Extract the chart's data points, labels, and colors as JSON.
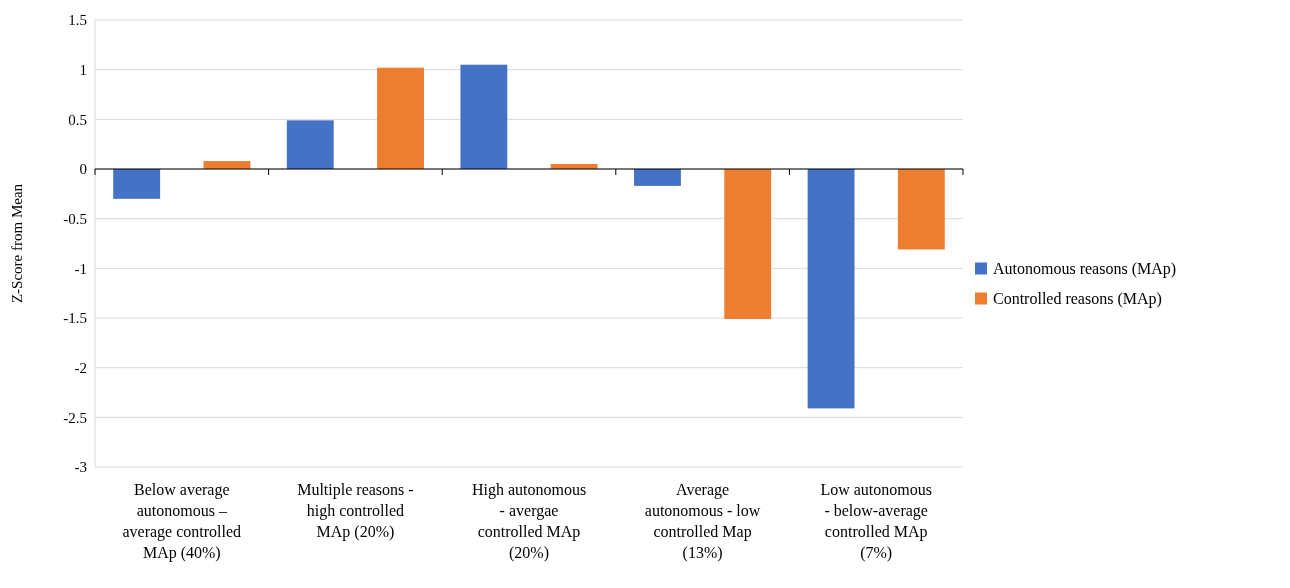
{
  "chart_data": {
    "type": "bar",
    "ylabel": "Z-Score from Mean",
    "categories": [
      "Below average\nautonomous –\naverage controlled\nMAp (40%)",
      "Multiple reasons -\nhigh controlled\nMAp (20%)",
      "High autonomous\n- avergae\ncontrolled MAp\n(20%)",
      "Average\nautonomous - low\ncontrolled Map\n(13%)",
      "Low autonomous\n- below-average\ncontrolled MAp\n(7%)"
    ],
    "series": [
      {
        "name": "Autonomous reasons (MAp)",
        "color": "#4472c4",
        "values": [
          -0.3,
          0.49,
          1.05,
          -0.17,
          -2.41
        ]
      },
      {
        "name": "Controlled reasons (MAp)",
        "color": "#ed7d31",
        "values": [
          0.08,
          1.02,
          0.05,
          -1.51,
          -0.81
        ]
      }
    ],
    "ylim": [
      -3,
      1.5
    ],
    "yticks": [
      {
        "value": -3,
        "label": "-3"
      },
      {
        "value": -2.5,
        "label": "-2.5"
      },
      {
        "value": -2,
        "label": "-2"
      },
      {
        "value": -1.5,
        "label": "-1.5"
      },
      {
        "value": -1,
        "label": "-1"
      },
      {
        "value": -0.5,
        "label": "-0.5"
      },
      0,
      0.5,
      1,
      1.5
    ],
    "grid": "y",
    "legend": "right"
  }
}
